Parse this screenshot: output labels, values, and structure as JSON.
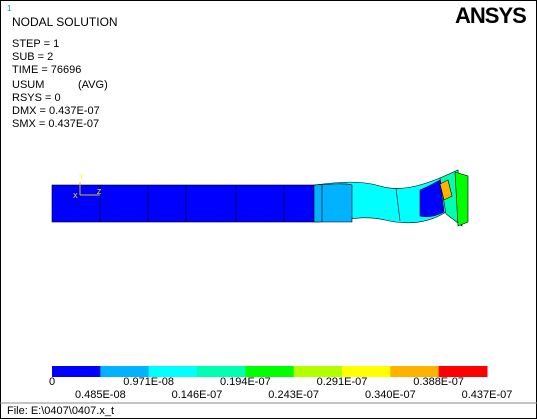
{
  "window_number": "1",
  "logo": "ANSYS",
  "info": {
    "title": "NODAL SOLUTION",
    "lines": [
      "STEP = 1",
      "SUB = 2",
      "TIME = 76696",
      "USUM",
      "RSYS = 0",
      "DMX = 0.437E-07",
      "SMX = 0.437E-07"
    ],
    "avg": "(AVG)"
  },
  "triad": {
    "y": "Y",
    "z": "Z",
    "x": "X"
  },
  "legend": {
    "colors": [
      "#0000ff",
      "#00b2ff",
      "#00ffff",
      "#00ffb2",
      "#00ff00",
      "#b2ff00",
      "#ffff00",
      "#ffb200",
      "#ff0000"
    ],
    "labels": [
      "0",
      "0.485E-08",
      "0.971E-08",
      "0.146E-07",
      "0.194E-07",
      "0.243E-07",
      "0.291E-07",
      "0.340E-07",
      "0.388E-07",
      "0.437E-07"
    ]
  },
  "footer": "File: E:\\0407\\0407.x_t"
}
